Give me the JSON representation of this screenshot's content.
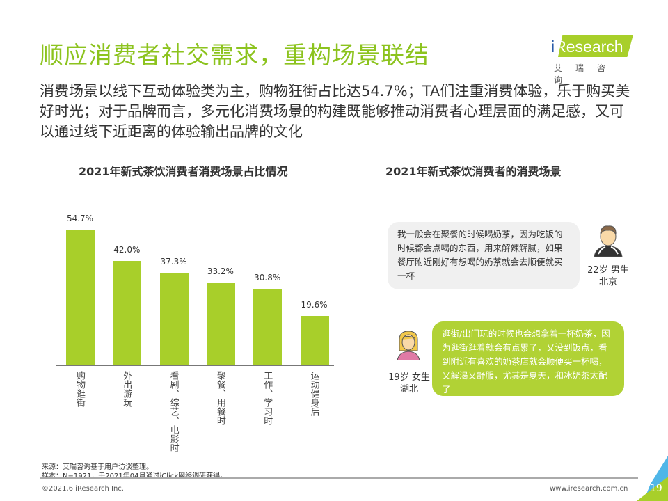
{
  "header": {
    "title": "顺应消费者社交需求，重构场景联结",
    "logo_text": "iResearch",
    "logo_cn": "艾瑞咨询"
  },
  "subtitle": "消费场景以线下互动体验类为主，购物狂街占比达54.7%；TA们注重消费体验，乐于购买美好时光；对于品牌而言，多元化消费场景的构建既能够推动消费者心理层面的满足感，又可以通过线下近距离的体验输出品牌的文化",
  "chart_data": {
    "type": "bar",
    "title": "2021年新式茶饮消费者消费场景占比情况",
    "categories": [
      "购物逛街",
      "外出游玩",
      "看剧、综艺、电影时",
      "聚餐、用餐时",
      "工作、学习时",
      "运动健身后"
    ],
    "values": [
      54.7,
      42.0,
      37.3,
      33.2,
      30.8,
      19.6
    ],
    "value_labels": [
      "54.7%",
      "42.0%",
      "37.3%",
      "33.2%",
      "30.8%",
      "19.6%"
    ],
    "unit": "%",
    "ylim": [
      0,
      60
    ],
    "grid": false,
    "color": "#a8cf2a"
  },
  "scenes": {
    "title": "2021年新式茶饮消费者的消费场景",
    "quotes": [
      {
        "text": "我一般会在聚餐的时候喝奶茶，因为吃饭的时候都会点喝的东西，用来解辣解腻，如果餐厅附近刚好有想喝的奶茶就会去顺便就买一杯",
        "who": "22岁 男生",
        "where": "北京",
        "avatar": "male-avatar-icon"
      },
      {
        "text": "逛街/出门玩的时候也会想拿着一杯奶茶，因为逛街逛着就会有点累了，又没到饭点，看到附近有喜欢的奶茶店就会顺便买一杯喝，又解渴又舒服，尤其是夏天，和冰奶茶太配了",
        "who": "19岁 女生",
        "where": "湖北",
        "avatar": "female-avatar-icon"
      }
    ]
  },
  "footer": {
    "source": "来源：艾瑞咨询基于用户访谈整理。",
    "sample": "样本：N=1921，于2021年04月通过iClick网络调研获得。",
    "copyright": "©2021.6 iResearch Inc.",
    "url": "www.iresearch.com.cn",
    "page": "19"
  }
}
